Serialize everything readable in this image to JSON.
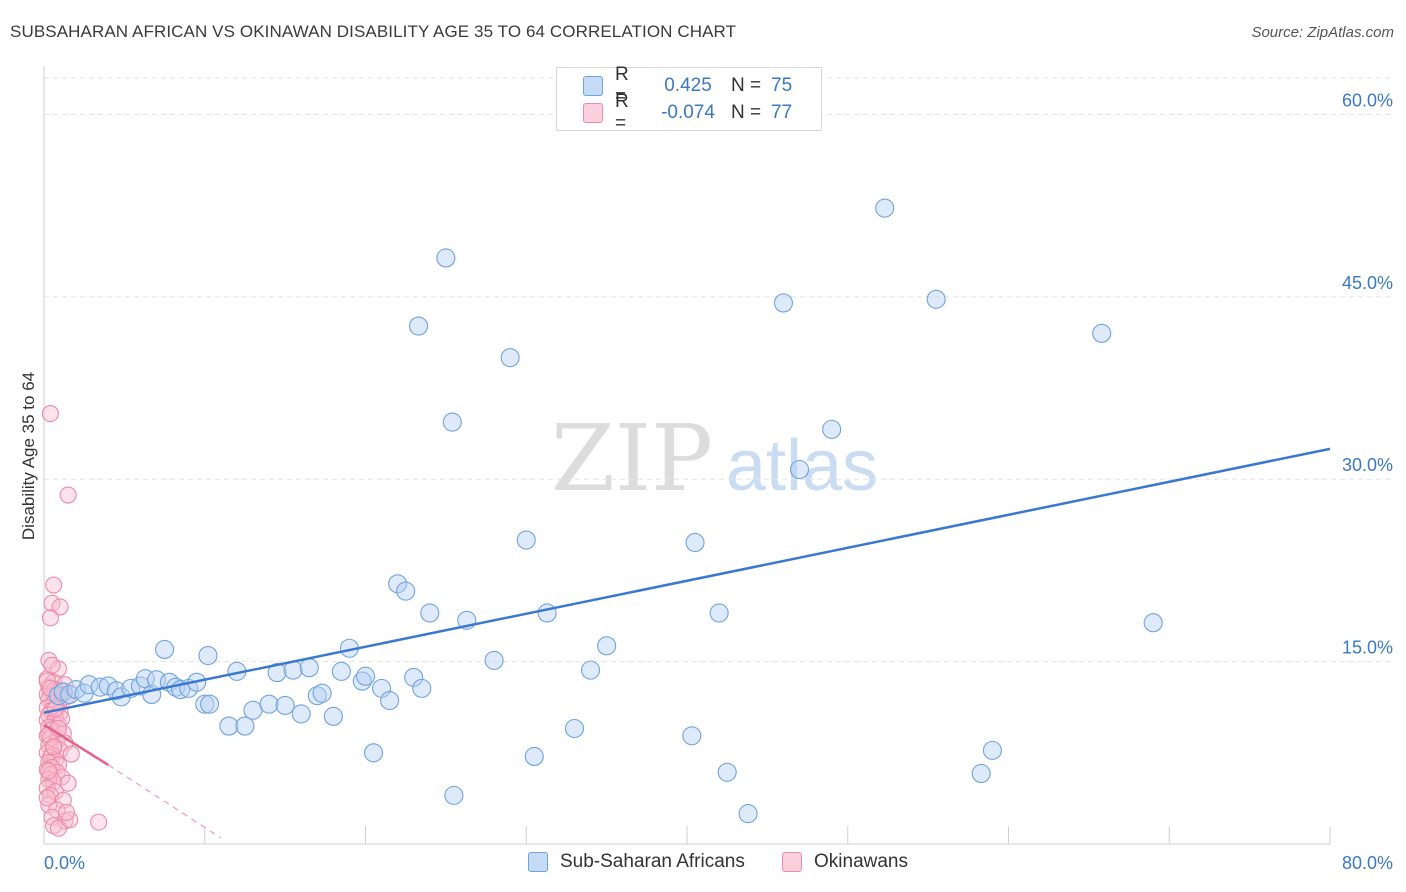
{
  "chart_data": {
    "type": "scatter",
    "title": "SUBSAHARAN AFRICAN VS OKINAWAN DISABILITY AGE 35 TO 64 CORRELATION CHART",
    "source": "Source: ZipAtlas.com",
    "ylabel": "Disability Age 35 to 64",
    "xlim": [
      0,
      80
    ],
    "ylim": [
      0,
      63
    ],
    "x_tick_labels": [
      "0.0%",
      "80.0%"
    ],
    "y_ticks": [
      15,
      30,
      45,
      60
    ],
    "y_tick_labels": [
      "15.0%",
      "30.0%",
      "45.0%",
      "60.0%"
    ],
    "watermark": "ZIPatlas",
    "legend": {
      "r_label": "R =",
      "n_label": "N =",
      "entries": [
        {
          "name": "Sub-Saharan Africans",
          "r": "0.425",
          "n": "75",
          "color": "#6fa3e0"
        },
        {
          "name": "Okinawans",
          "r": "-0.074",
          "n": "77",
          "color": "#ee8aaa"
        }
      ]
    },
    "series": [
      {
        "name": "Sub-Saharan Africans",
        "color": "#6fa3e0",
        "trend": {
          "x0": 0,
          "y0": 10.8,
          "x1": 80,
          "y1": 32.5
        },
        "points": [
          [
            0.9,
            12.2
          ],
          [
            1.2,
            12.5
          ],
          [
            1.6,
            12.3
          ],
          [
            2.0,
            12.7
          ],
          [
            2.5,
            12.4
          ],
          [
            2.8,
            13.1
          ],
          [
            3.5,
            12.9
          ],
          [
            4.0,
            13.0
          ],
          [
            4.5,
            12.6
          ],
          [
            4.8,
            12.1
          ],
          [
            5.4,
            12.8
          ],
          [
            6.0,
            13.0
          ],
          [
            6.3,
            13.6
          ],
          [
            6.7,
            12.3
          ],
          [
            7.0,
            13.5
          ],
          [
            7.8,
            13.3
          ],
          [
            8.2,
            12.9
          ],
          [
            8.5,
            12.7
          ],
          [
            9.0,
            12.8
          ],
          [
            9.5,
            13.3
          ],
          [
            10.0,
            11.5
          ],
          [
            10.3,
            11.5
          ],
          [
            11.5,
            9.7
          ],
          [
            12.0,
            14.2
          ],
          [
            12.5,
            9.7
          ],
          [
            13.0,
            11.0
          ],
          [
            14.0,
            11.5
          ],
          [
            14.5,
            14.1
          ],
          [
            15.0,
            11.4
          ],
          [
            15.5,
            14.3
          ],
          [
            16.0,
            10.7
          ],
          [
            16.5,
            14.5
          ],
          [
            17.0,
            12.2
          ],
          [
            17.3,
            12.4
          ],
          [
            18.0,
            10.5
          ],
          [
            18.5,
            14.2
          ],
          [
            19.0,
            16.1
          ],
          [
            19.8,
            13.4
          ],
          [
            20.0,
            13.8
          ],
          [
            20.5,
            7.5
          ],
          [
            21.0,
            12.8
          ],
          [
            21.5,
            11.8
          ],
          [
            22.0,
            21.4
          ],
          [
            22.5,
            20.8
          ],
          [
            23.0,
            13.7
          ],
          [
            23.5,
            12.8
          ],
          [
            24.0,
            19.0
          ],
          [
            7.5,
            16.0
          ],
          [
            10.2,
            15.5
          ],
          [
            23.3,
            42.6
          ],
          [
            25.0,
            48.2
          ],
          [
            25.4,
            34.7
          ],
          [
            25.5,
            4.0
          ],
          [
            26.3,
            18.4
          ],
          [
            28.0,
            15.1
          ],
          [
            29.0,
            40.0
          ],
          [
            30.0,
            25.0
          ],
          [
            30.5,
            7.2
          ],
          [
            31.3,
            19.0
          ],
          [
            33.0,
            9.5
          ],
          [
            34.0,
            14.3
          ],
          [
            35.0,
            16.3
          ],
          [
            40.3,
            8.9
          ],
          [
            40.5,
            24.8
          ],
          [
            42.0,
            19.0
          ],
          [
            42.5,
            5.9
          ],
          [
            43.8,
            2.5
          ],
          [
            46.0,
            44.5
          ],
          [
            47.0,
            30.8
          ],
          [
            49.0,
            34.1
          ],
          [
            52.3,
            52.3
          ],
          [
            55.5,
            44.8
          ],
          [
            58.3,
            5.8
          ],
          [
            59.0,
            7.7
          ],
          [
            65.8,
            42.0
          ],
          [
            69.0,
            18.2
          ]
        ]
      },
      {
        "name": "Okinawans",
        "color": "#ee8aaa",
        "trend": {
          "x0": 0,
          "y0": 9.8,
          "x1": 4.0,
          "y1": 6.5
        },
        "trend_dashed": {
          "x0": 4.0,
          "y0": 6.5,
          "x1": 11.0,
          "y1": 0.5
        },
        "points": [
          [
            0.4,
            35.4
          ],
          [
            1.5,
            28.7
          ],
          [
            0.6,
            21.3
          ],
          [
            0.5,
            19.8
          ],
          [
            1.0,
            19.5
          ],
          [
            0.4,
            18.6
          ],
          [
            0.3,
            15.1
          ],
          [
            0.9,
            14.4
          ],
          [
            0.2,
            13.6
          ],
          [
            0.6,
            13.3
          ],
          [
            1.3,
            13.1
          ],
          [
            0.3,
            12.9
          ],
          [
            0.7,
            12.7
          ],
          [
            1.1,
            12.6
          ],
          [
            0.5,
            12.5
          ],
          [
            0.2,
            12.3
          ],
          [
            0.8,
            12.2
          ],
          [
            1.4,
            12.1
          ],
          [
            0.3,
            11.9
          ],
          [
            0.6,
            11.6
          ],
          [
            0.9,
            11.4
          ],
          [
            0.2,
            11.2
          ],
          [
            0.5,
            11.0
          ],
          [
            1.0,
            10.8
          ],
          [
            0.3,
            10.6
          ],
          [
            0.7,
            10.4
          ],
          [
            0.2,
            10.2
          ],
          [
            0.6,
            10.0
          ],
          [
            0.9,
            9.8
          ],
          [
            0.3,
            9.6
          ],
          [
            0.5,
            9.4
          ],
          [
            1.2,
            9.1
          ],
          [
            0.2,
            8.9
          ],
          [
            0.4,
            8.7
          ],
          [
            0.8,
            8.5
          ],
          [
            1.3,
            8.3
          ],
          [
            0.3,
            8.1
          ],
          [
            0.6,
            7.9
          ],
          [
            1.0,
            7.7
          ],
          [
            0.2,
            7.5
          ],
          [
            0.5,
            7.3
          ],
          [
            1.7,
            7.4
          ],
          [
            0.4,
            7.1
          ],
          [
            0.7,
            6.9
          ],
          [
            0.3,
            6.7
          ],
          [
            0.9,
            6.5
          ],
          [
            0.5,
            6.3
          ],
          [
            0.2,
            6.1
          ],
          [
            0.8,
            5.9
          ],
          [
            0.4,
            5.7
          ],
          [
            1.1,
            5.5
          ],
          [
            0.3,
            5.3
          ],
          [
            0.6,
            5.1
          ],
          [
            1.5,
            5.0
          ],
          [
            0.2,
            4.6
          ],
          [
            0.7,
            4.3
          ],
          [
            0.4,
            4.0
          ],
          [
            1.2,
            3.6
          ],
          [
            0.3,
            3.2
          ],
          [
            0.8,
            2.8
          ],
          [
            0.5,
            2.2
          ],
          [
            1.3,
            1.9
          ],
          [
            0.6,
            1.5
          ],
          [
            0.9,
            1.3
          ],
          [
            1.6,
            2.0
          ],
          [
            3.4,
            1.8
          ],
          [
            0.2,
            13.4
          ],
          [
            0.3,
            9.0
          ],
          [
            0.4,
            12.8
          ],
          [
            0.6,
            8.0
          ],
          [
            0.5,
            14.7
          ],
          [
            0.3,
            6.0
          ],
          [
            1.1,
            10.3
          ],
          [
            0.7,
            11.1
          ],
          [
            0.2,
            3.8
          ],
          [
            1.4,
            2.6
          ],
          [
            0.9,
            9.5
          ]
        ]
      }
    ]
  }
}
